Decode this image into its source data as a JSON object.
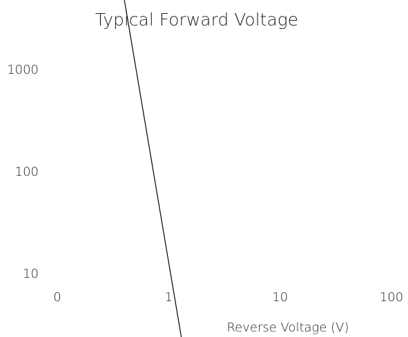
{
  "chart_data": {
    "type": "line",
    "title": "Typical Forward Voltage",
    "x_label": "Reverse Voltage (V)",
    "x": [
      0.4,
      1.3
    ],
    "series": [
      {
        "color": "#000000",
        "values": [
          4900,
          2.4
        ]
      }
    ],
    "xscale": "log",
    "yscale": "log",
    "xlim": [
      0.1,
      100
    ],
    "xticks": [
      {
        "value": 0.1,
        "label": "0"
      },
      1,
      10,
      100
    ],
    "ylim": [
      10,
      1000
    ],
    "yticks": [
      10,
      100,
      1000
    ],
    "grid": false
  }
}
